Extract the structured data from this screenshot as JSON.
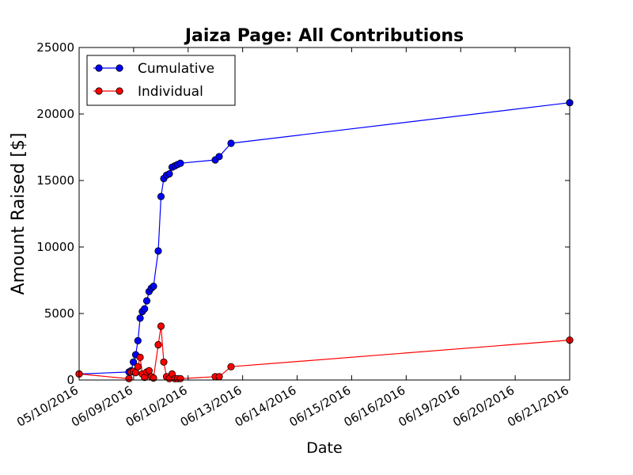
{
  "chart_data": {
    "type": "line",
    "title": "Jaiza Page: All Contributions",
    "xlabel": "Date",
    "ylabel": "Amount Raised [$]",
    "ylim": [
      0,
      25000
    ],
    "y_ticks": [
      0,
      5000,
      10000,
      15000,
      20000,
      25000
    ],
    "x_ticks": [
      "05/10/2016",
      "06/09/2016",
      "06/10/2016",
      "06/13/2016",
      "06/14/2016",
      "06/15/2016",
      "06/16/2016",
      "06/19/2016",
      "06/20/2016",
      "06/21/2016"
    ],
    "grid": false,
    "legend": "top-left",
    "series": [
      {
        "name": "Cumulative",
        "color": "#0000ff",
        "points": [
          [
            "05/10/2016",
            450
          ],
          [
            "06/08/2016",
            600
          ],
          [
            "06/08/2016",
            700
          ],
          [
            "06/08/2016",
            1350
          ],
          [
            "06/08/2016",
            1900
          ],
          [
            "06/08/2016",
            2950
          ],
          [
            "06/08/2016",
            4650
          ],
          [
            "06/08/2016",
            5150
          ],
          [
            "06/08/2016",
            5350
          ],
          [
            "06/08/2016",
            5950
          ],
          [
            "06/08/2016",
            6650
          ],
          [
            "06/08/2016",
            6900
          ],
          [
            "06/08/2016",
            7050
          ],
          [
            "06/09/2016",
            9700
          ],
          [
            "06/09/2016",
            13800
          ],
          [
            "06/09/2016",
            15150
          ],
          [
            "06/09/2016",
            15400
          ],
          [
            "06/09/2016",
            15500
          ],
          [
            "06/09/2016",
            16000
          ],
          [
            "06/09/2016",
            16100
          ],
          [
            "06/09/2016",
            16200
          ],
          [
            "06/09/2016",
            16300
          ],
          [
            "06/10/2016",
            16550
          ],
          [
            "06/10/2016",
            16800
          ],
          [
            "06/10/2016",
            17800
          ],
          [
            "06/21/2016",
            20850
          ]
        ]
      },
      {
        "name": "Individual",
        "color": "#ff0000",
        "points": [
          [
            "05/10/2016",
            450
          ],
          [
            "06/08/2016",
            100
          ],
          [
            "06/08/2016",
            600
          ],
          [
            "06/08/2016",
            650
          ],
          [
            "06/08/2016",
            550
          ],
          [
            "06/08/2016",
            1000
          ],
          [
            "06/08/2016",
            1700
          ],
          [
            "06/08/2016",
            450
          ],
          [
            "06/08/2016",
            200
          ],
          [
            "06/08/2016",
            600
          ],
          [
            "06/08/2016",
            700
          ],
          [
            "06/08/2016",
            250
          ],
          [
            "06/08/2016",
            150
          ],
          [
            "06/09/2016",
            2650
          ],
          [
            "06/09/2016",
            4050
          ],
          [
            "06/09/2016",
            1350
          ],
          [
            "06/09/2016",
            250
          ],
          [
            "06/09/2016",
            100
          ],
          [
            "06/09/2016",
            450
          ],
          [
            "06/09/2016",
            100
          ],
          [
            "06/09/2016",
            100
          ],
          [
            "06/09/2016",
            100
          ],
          [
            "06/10/2016",
            250
          ],
          [
            "06/10/2016",
            250
          ],
          [
            "06/10/2016",
            1000
          ],
          [
            "06/21/2016",
            3000
          ]
        ]
      }
    ]
  }
}
